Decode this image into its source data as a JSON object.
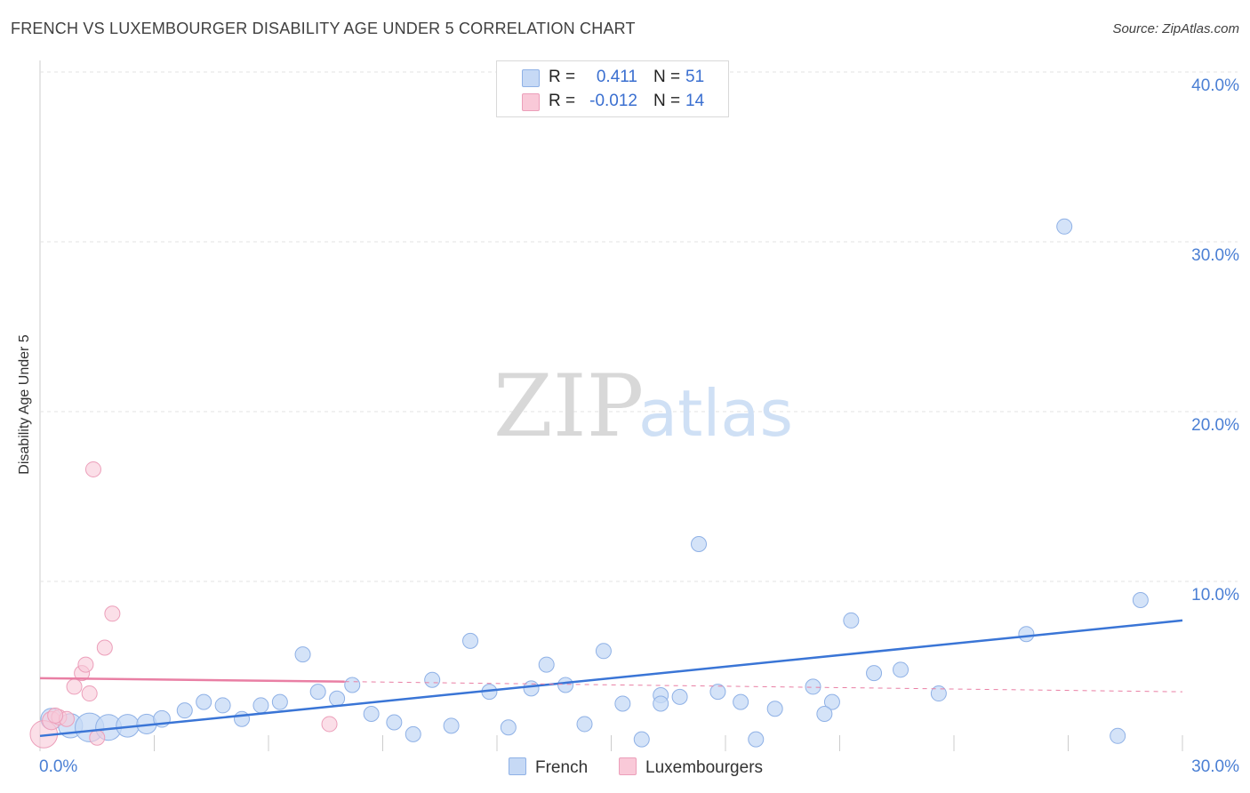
{
  "title": "FRENCH VS LUXEMBOURGER DISABILITY AGE UNDER 5 CORRELATION CHART",
  "source": "Source: ZipAtlas.com",
  "colors": {
    "blue": "#3a75d6",
    "blue_fill": "#c6d9f5",
    "pink": "#e97fa4",
    "pink_fill": "#f9c9d8",
    "tick_text": "#4a7fd4"
  },
  "stats": {
    "rows": [
      {
        "r_label": "R =",
        "r_value": "0.411",
        "n_label": "N =",
        "n_value": "51"
      },
      {
        "r_label": "R =",
        "r_value": "-0.012",
        "n_label": "N =",
        "n_value": "14"
      }
    ]
  },
  "legend": {
    "items": [
      "French",
      "Luxembourgers"
    ]
  },
  "watermark": {
    "zip": "ZIP",
    "atlas": "atlas"
  },
  "chart_data": {
    "type": "scatter",
    "title": "FRENCH VS LUXEMBOURGER DISABILITY AGE UNDER 5 CORRELATION CHART",
    "xlabel": "",
    "ylabel": "Disability Age Under 5",
    "xlim": [
      0,
      30
    ],
    "ylim": [
      0,
      40
    ],
    "x_tick_labels": [
      "0.0%",
      "30.0%"
    ],
    "y_ticks": [
      10,
      20,
      30,
      40
    ],
    "y_tick_labels": [
      "10.0%",
      "20.0%",
      "30.0%",
      "40.0%"
    ],
    "grid": true,
    "series": [
      {
        "name": "French",
        "r": 0.411,
        "n": 51,
        "trend": {
          "x": [
            0,
            30
          ],
          "y": [
            0.9,
            7.7
          ]
        },
        "points": [
          {
            "x": 0.3,
            "y": 1.9,
            "s": 1.4
          },
          {
            "x": 0.8,
            "y": 1.5,
            "s": 1.6
          },
          {
            "x": 1.3,
            "y": 1.4,
            "s": 1.9
          },
          {
            "x": 1.8,
            "y": 1.4,
            "s": 1.7
          },
          {
            "x": 2.3,
            "y": 1.5,
            "s": 1.5
          },
          {
            "x": 2.8,
            "y": 1.6,
            "s": 1.3
          },
          {
            "x": 3.2,
            "y": 1.9,
            "s": 1.1
          },
          {
            "x": 3.8,
            "y": 2.4,
            "s": 1.0
          },
          {
            "x": 4.3,
            "y": 2.9,
            "s": 1.0
          },
          {
            "x": 4.8,
            "y": 2.7,
            "s": 1.0
          },
          {
            "x": 5.3,
            "y": 1.9,
            "s": 1.0
          },
          {
            "x": 5.8,
            "y": 2.7,
            "s": 1.0
          },
          {
            "x": 6.3,
            "y": 2.9,
            "s": 1.0
          },
          {
            "x": 6.9,
            "y": 5.7,
            "s": 1.0
          },
          {
            "x": 7.3,
            "y": 3.5,
            "s": 1.0
          },
          {
            "x": 7.8,
            "y": 3.1,
            "s": 1.0
          },
          {
            "x": 8.2,
            "y": 3.9,
            "s": 1.0
          },
          {
            "x": 8.7,
            "y": 2.2,
            "s": 1.0
          },
          {
            "x": 9.3,
            "y": 1.7,
            "s": 1.0
          },
          {
            "x": 9.8,
            "y": 1.0,
            "s": 1.0
          },
          {
            "x": 10.3,
            "y": 4.2,
            "s": 1.0
          },
          {
            "x": 10.8,
            "y": 1.5,
            "s": 1.0
          },
          {
            "x": 11.3,
            "y": 6.5,
            "s": 1.0
          },
          {
            "x": 11.8,
            "y": 3.5,
            "s": 1.0
          },
          {
            "x": 12.3,
            "y": 1.4,
            "s": 1.0
          },
          {
            "x": 12.9,
            "y": 3.7,
            "s": 1.0
          },
          {
            "x": 13.3,
            "y": 5.1,
            "s": 1.0
          },
          {
            "x": 13.8,
            "y": 3.9,
            "s": 1.0
          },
          {
            "x": 14.3,
            "y": 1.6,
            "s": 1.0
          },
          {
            "x": 14.8,
            "y": 5.9,
            "s": 1.0
          },
          {
            "x": 15.3,
            "y": 2.8,
            "s": 1.0
          },
          {
            "x": 15.8,
            "y": 0.7,
            "s": 1.0
          },
          {
            "x": 16.3,
            "y": 3.3,
            "s": 1.0
          },
          {
            "x": 16.8,
            "y": 3.2,
            "s": 1.0
          },
          {
            "x": 17.3,
            "y": 12.2,
            "s": 1.0
          },
          {
            "x": 17.8,
            "y": 3.5,
            "s": 1.0
          },
          {
            "x": 18.4,
            "y": 2.9,
            "s": 1.0
          },
          {
            "x": 18.8,
            "y": 0.7,
            "s": 1.0
          },
          {
            "x": 19.3,
            "y": 2.5,
            "s": 1.0
          },
          {
            "x": 20.3,
            "y": 3.8,
            "s": 1.0
          },
          {
            "x": 20.8,
            "y": 2.9,
            "s": 1.0
          },
          {
            "x": 21.3,
            "y": 7.7,
            "s": 1.0
          },
          {
            "x": 21.9,
            "y": 4.6,
            "s": 1.0
          },
          {
            "x": 22.6,
            "y": 4.8,
            "s": 1.0
          },
          {
            "x": 23.6,
            "y": 3.4,
            "s": 1.0
          },
          {
            "x": 26.9,
            "y": 30.9,
            "s": 1.0
          },
          {
            "x": 28.9,
            "y": 8.9,
            "s": 1.0
          },
          {
            "x": 28.3,
            "y": 0.9,
            "s": 1.0
          },
          {
            "x": 25.9,
            "y": 6.9,
            "s": 1.0
          },
          {
            "x": 16.3,
            "y": 2.8,
            "s": 1.0
          },
          {
            "x": 20.6,
            "y": 2.2,
            "s": 1.0
          }
        ]
      },
      {
        "name": "Luxembourgers",
        "r": -0.012,
        "n": 14,
        "trend": {
          "x": [
            0,
            8
          ],
          "y": [
            4.3,
            4.1
          ]
        },
        "trend_dashed": {
          "x": [
            8,
            30
          ],
          "y": [
            4.1,
            3.5
          ]
        },
        "points": [
          {
            "x": 0.1,
            "y": 1.0,
            "s": 1.8
          },
          {
            "x": 0.3,
            "y": 1.8,
            "s": 1.2
          },
          {
            "x": 0.5,
            "y": 2.0,
            "s": 1.0
          },
          {
            "x": 0.7,
            "y": 1.9,
            "s": 1.0
          },
          {
            "x": 0.9,
            "y": 3.8,
            "s": 1.0
          },
          {
            "x": 1.1,
            "y": 4.6,
            "s": 1.0
          },
          {
            "x": 1.2,
            "y": 5.1,
            "s": 1.0
          },
          {
            "x": 1.3,
            "y": 3.4,
            "s": 1.0
          },
          {
            "x": 1.4,
            "y": 16.6,
            "s": 1.0
          },
          {
            "x": 1.5,
            "y": 0.8,
            "s": 1.0
          },
          {
            "x": 1.7,
            "y": 6.1,
            "s": 1.0
          },
          {
            "x": 1.9,
            "y": 8.1,
            "s": 1.0
          },
          {
            "x": 7.6,
            "y": 1.6,
            "s": 1.0
          },
          {
            "x": 0.4,
            "y": 2.1,
            "s": 1.0
          }
        ]
      }
    ]
  }
}
